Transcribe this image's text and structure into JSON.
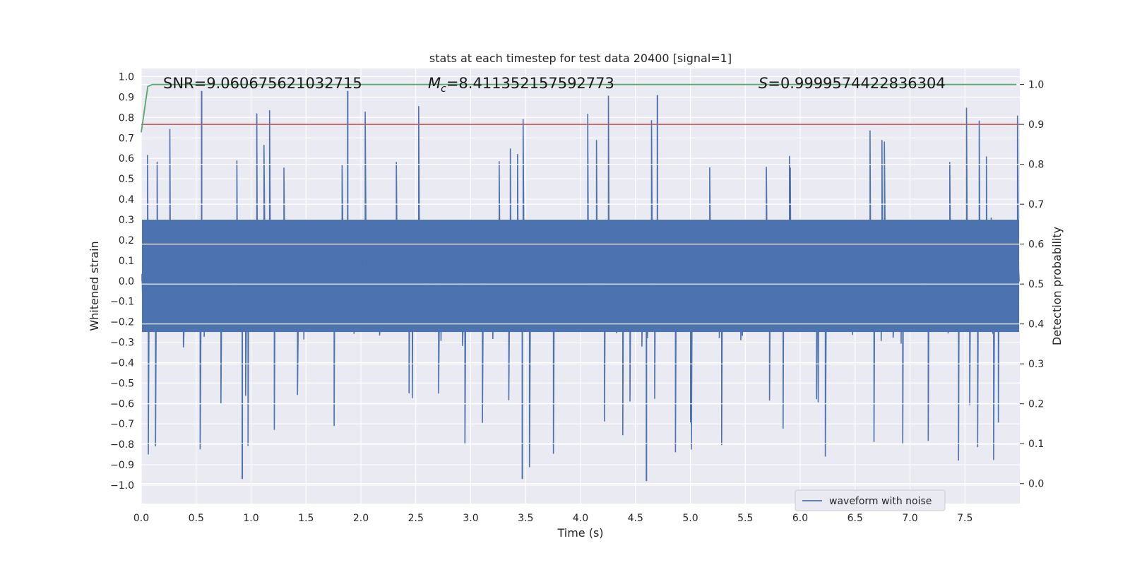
{
  "chart_data": {
    "type": "line",
    "title": "stats at each timestep for test data 20400 [signal=1]",
    "xlabel": "Time (s)",
    "ylabel_left": "Whitened strain",
    "ylabel_right": "Detection probability",
    "xlim": [
      0.0,
      8.0
    ],
    "ylim_left": [
      -1.09,
      1.04
    ],
    "ylim_right": [
      -0.05,
      1.04
    ],
    "x_ticks": [
      "0.0",
      "0.5",
      "1.0",
      "1.5",
      "2.0",
      "2.5",
      "3.0",
      "3.5",
      "4.0",
      "4.5",
      "5.0",
      "5.5",
      "6.0",
      "6.5",
      "7.0",
      "7.5"
    ],
    "y_left_ticks": [
      "1.0",
      "0.9",
      "0.8",
      "0.7",
      "0.6",
      "0.5",
      "0.4",
      "0.3",
      "0.2",
      "0.1",
      "0.0",
      "−0.1",
      "−0.2",
      "−0.3",
      "−0.4",
      "−0.5",
      "−0.6",
      "−0.7",
      "−0.8",
      "−0.9",
      "−1.0"
    ],
    "y_right_ticks": [
      "0.0",
      "0.1",
      "0.2",
      "0.3",
      "0.4",
      "0.5",
      "0.6",
      "0.7",
      "0.8",
      "0.9",
      "1.0"
    ],
    "grid": true,
    "legend": {
      "position": "lower-right",
      "entries": [
        "waveform with noise"
      ]
    },
    "annotations": {
      "snr_label": "SNR=9.060675621032715",
      "mc_symbol": "M",
      "mc_subscript": "c",
      "mc_value": "=8.411352157592773",
      "s_symbol": "S",
      "s_value": "=0.9999574422836304"
    },
    "series": [
      {
        "name": "waveform with noise",
        "axis": "left",
        "color": "#4c72b0",
        "description": "dense noisy whitened strain, amplitude approx -1.0 to 0.93 over 0-8 s",
        "sample_peaks": [
          {
            "x": 0.55,
            "y": 0.93
          },
          {
            "x": 1.88,
            "y": 0.93
          },
          {
            "x": 4.7,
            "y": 0.91
          },
          {
            "x": 4.6,
            "y": -0.98
          },
          {
            "x": 0.92,
            "y": -0.97
          },
          {
            "x": 3.47,
            "y": -0.97
          }
        ]
      },
      {
        "name": "detection probability",
        "axis": "right",
        "color": "#55a868",
        "x": [
          0.0,
          0.06,
          0.1,
          7.97
        ],
        "values": [
          0.88,
          0.995,
          1.0,
          1.0
        ]
      },
      {
        "name": "threshold",
        "axis": "right",
        "color": "#c44e52",
        "x": [
          0.0,
          8.0
        ],
        "values": [
          0.9,
          0.9
        ]
      }
    ]
  }
}
